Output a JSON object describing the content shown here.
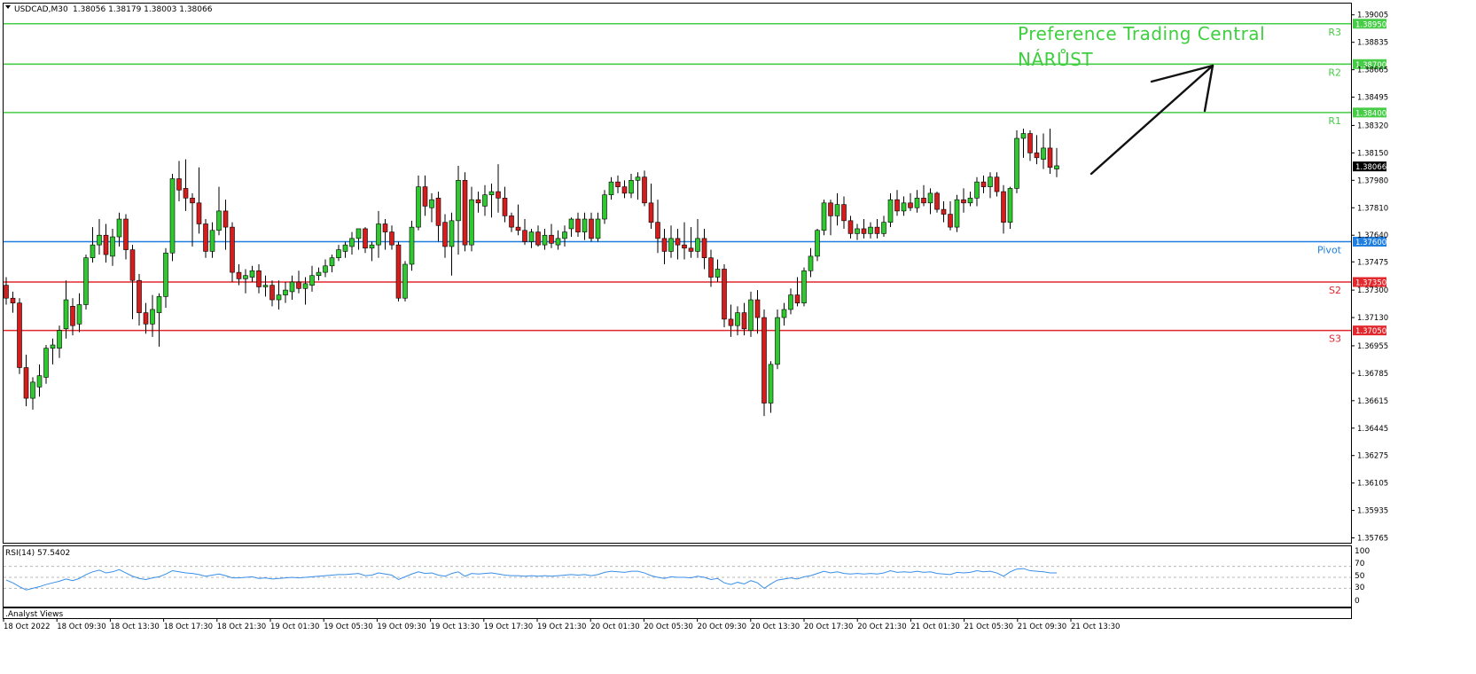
{
  "header": {
    "symbol_label": "USDCAD,M30",
    "ohlc": "1.38056 1.38179 1.38003 1.38066"
  },
  "annotation": {
    "line1": "Preference Trading Central",
    "line2": "NÁRŮST"
  },
  "rsi_panel": {
    "label": "RSI(14) 57.5402",
    "levels": [
      "100",
      "70",
      "50",
      "30",
      "0"
    ]
  },
  "indicator_footer": ".Analyst Views",
  "colors": {
    "bull": "#2ec92e",
    "bear": "#d41d1d",
    "resistance": "#46cc46",
    "support": "#e0282d",
    "pivot": "#1f7fe0",
    "rsi": "#3a8fe8",
    "annotation_text": "#3ecf3e",
    "arrow": "#111111"
  },
  "chart_data": {
    "type": "candlestick",
    "symbol": "USDCAD",
    "timeframe": "M30",
    "y_tick_labels": [
      "1.39005",
      "1.38835",
      "1.38665",
      "1.38495",
      "1.38320",
      "1.38150",
      "1.37980",
      "1.37810",
      "1.37640",
      "1.37475",
      "1.37300",
      "1.37130",
      "1.36955",
      "1.36785",
      "1.36615",
      "1.36445",
      "1.36275",
      "1.36105",
      "1.35935",
      "1.35765"
    ],
    "x_tick_labels": [
      "18 Oct 2022",
      "18 Oct 09:30",
      "18 Oct 13:30",
      "18 Oct 17:30",
      "18 Oct 21:30",
      "19 Oct 01:30",
      "19 Oct 05:30",
      "19 Oct 09:30",
      "19 Oct 13:30",
      "19 Oct 17:30",
      "19 Oct 21:30",
      "20 Oct 01:30",
      "20 Oct 05:30",
      "20 Oct 09:30",
      "20 Oct 13:30",
      "20 Oct 17:30",
      "20 Oct 21:30",
      "21 Oct 01:30",
      "21 Oct 05:30",
      "21 Oct 09:30",
      "21 Oct 13:30"
    ],
    "ylim": [
      1.35735,
      1.39075
    ],
    "current_price": "1.38066",
    "levels": [
      {
        "name": "R3",
        "value": 1.3895,
        "label": "1.38950",
        "kind": "resistance"
      },
      {
        "name": "R2",
        "value": 1.387,
        "label": "1.38700",
        "kind": "resistance"
      },
      {
        "name": "R1",
        "value": 1.384,
        "label": "1.38400",
        "kind": "resistance"
      },
      {
        "name": "Pivot",
        "value": 1.376,
        "label": "1.37600",
        "kind": "pivot"
      },
      {
        "name": "S2",
        "value": 1.3735,
        "label": "1.37350",
        "kind": "support"
      },
      {
        "name": "S3",
        "value": 1.3705,
        "label": "1.37050",
        "kind": "support"
      }
    ],
    "ohlc": [
      [
        1.3733,
        1.3738,
        1.3721,
        1.3725
      ],
      [
        1.3725,
        1.3729,
        1.3716,
        1.3722
      ],
      [
        1.3722,
        1.3725,
        1.3678,
        1.3682
      ],
      [
        1.3682,
        1.369,
        1.3658,
        1.3663
      ],
      [
        1.3663,
        1.3676,
        1.3656,
        1.3673
      ],
      [
        1.367,
        1.3684,
        1.3664,
        1.3677
      ],
      [
        1.3676,
        1.3696,
        1.3672,
        1.3694
      ],
      [
        1.3694,
        1.37,
        1.3684,
        1.3696
      ],
      [
        1.3694,
        1.3708,
        1.3688,
        1.3705
      ],
      [
        1.3706,
        1.3736,
        1.37,
        1.3724
      ],
      [
        1.372,
        1.3725,
        1.3702,
        1.3708
      ],
      [
        1.3709,
        1.3728,
        1.3704,
        1.3721
      ],
      [
        1.3721,
        1.3752,
        1.3718,
        1.375
      ],
      [
        1.375,
        1.3769,
        1.3747,
        1.3758
      ],
      [
        1.3758,
        1.3774,
        1.3752,
        1.3764
      ],
      [
        1.3764,
        1.3771,
        1.3747,
        1.3752
      ],
      [
        1.3751,
        1.3768,
        1.3745,
        1.3763
      ],
      [
        1.3763,
        1.3778,
        1.3757,
        1.3774
      ],
      [
        1.3774,
        1.3777,
        1.3749,
        1.3755
      ],
      [
        1.3755,
        1.3758,
        1.3712,
        1.3736
      ],
      [
        1.3736,
        1.374,
        1.3708,
        1.3716
      ],
      [
        1.3716,
        1.3722,
        1.3703,
        1.3709
      ],
      [
        1.3709,
        1.3727,
        1.3701,
        1.3718
      ],
      [
        1.3716,
        1.3728,
        1.3695,
        1.3726
      ],
      [
        1.3726,
        1.3756,
        1.3719,
        1.3753
      ],
      [
        1.3753,
        1.3802,
        1.3748,
        1.3799
      ],
      [
        1.3799,
        1.381,
        1.3785,
        1.3792
      ],
      [
        1.3793,
        1.3811,
        1.3779,
        1.3787
      ],
      [
        1.3787,
        1.379,
        1.3757,
        1.3784
      ],
      [
        1.3784,
        1.3806,
        1.3765,
        1.3771
      ],
      [
        1.3771,
        1.3774,
        1.375,
        1.3754
      ],
      [
        1.3754,
        1.3772,
        1.375,
        1.3767
      ],
      [
        1.3767,
        1.3794,
        1.3764,
        1.3779
      ],
      [
        1.3779,
        1.3786,
        1.3755,
        1.3769
      ],
      [
        1.3769,
        1.3772,
        1.3735,
        1.3741
      ],
      [
        1.3741,
        1.3746,
        1.3733,
        1.3737
      ],
      [
        1.3737,
        1.3743,
        1.3728,
        1.3739
      ],
      [
        1.3738,
        1.3745,
        1.3735,
        1.3742
      ],
      [
        1.3742,
        1.3746,
        1.3728,
        1.3732
      ],
      [
        1.3732,
        1.3739,
        1.3726,
        1.3733
      ],
      [
        1.3733,
        1.3736,
        1.372,
        1.3724
      ],
      [
        1.3724,
        1.3736,
        1.3718,
        1.3727
      ],
      [
        1.3727,
        1.3735,
        1.3722,
        1.373
      ],
      [
        1.3729,
        1.3739,
        1.3724,
        1.3735
      ],
      [
        1.3735,
        1.3742,
        1.3728,
        1.3731
      ],
      [
        1.3731,
        1.3738,
        1.3721,
        1.3734
      ],
      [
        1.3733,
        1.3745,
        1.3729,
        1.3739
      ],
      [
        1.3739,
        1.3744,
        1.3736,
        1.3741
      ],
      [
        1.3741,
        1.3749,
        1.3738,
        1.3745
      ],
      [
        1.3745,
        1.3752,
        1.3741,
        1.375
      ],
      [
        1.375,
        1.3758,
        1.3748,
        1.3755
      ],
      [
        1.3754,
        1.376,
        1.375,
        1.3758
      ],
      [
        1.3757,
        1.3766,
        1.3752,
        1.3762
      ],
      [
        1.3762,
        1.3768,
        1.3755,
        1.3768
      ],
      [
        1.3768,
        1.3769,
        1.3753,
        1.3756
      ],
      [
        1.3756,
        1.376,
        1.3748,
        1.3758
      ],
      [
        1.3758,
        1.3779,
        1.375,
        1.3771
      ],
      [
        1.3771,
        1.3774,
        1.3755,
        1.3766
      ],
      [
        1.3766,
        1.377,
        1.3755,
        1.3758
      ],
      [
        1.3758,
        1.376,
        1.3723,
        1.3725
      ],
      [
        1.3725,
        1.3748,
        1.3723,
        1.3746
      ],
      [
        1.3746,
        1.3773,
        1.3742,
        1.3769
      ],
      [
        1.3769,
        1.3801,
        1.3767,
        1.3794
      ],
      [
        1.3794,
        1.3801,
        1.3776,
        1.3782
      ],
      [
        1.3781,
        1.379,
        1.3772,
        1.3786
      ],
      [
        1.3787,
        1.3791,
        1.376,
        1.377
      ],
      [
        1.3772,
        1.3777,
        1.375,
        1.3757
      ],
      [
        1.3757,
        1.3778,
        1.3739,
        1.3773
      ],
      [
        1.3773,
        1.3807,
        1.3752,
        1.3798
      ],
      [
        1.3798,
        1.3803,
        1.3754,
        1.3758
      ],
      [
        1.3758,
        1.3794,
        1.3754,
        1.3786
      ],
      [
        1.3786,
        1.3791,
        1.3778,
        1.3784
      ],
      [
        1.3782,
        1.3795,
        1.3776,
        1.3789
      ],
      [
        1.3789,
        1.3796,
        1.3775,
        1.3791
      ],
      [
        1.3791,
        1.3808,
        1.3778,
        1.3787
      ],
      [
        1.3787,
        1.3794,
        1.3772,
        1.3776
      ],
      [
        1.3776,
        1.3778,
        1.3766,
        1.3769
      ],
      [
        1.3769,
        1.3783,
        1.3764,
        1.3767
      ],
      [
        1.3767,
        1.3774,
        1.3758,
        1.376
      ],
      [
        1.376,
        1.3768,
        1.3756,
        1.3766
      ],
      [
        1.3766,
        1.377,
        1.3757,
        1.3758
      ],
      [
        1.3758,
        1.3768,
        1.3755,
        1.3764
      ],
      [
        1.3764,
        1.3771,
        1.3756,
        1.3759
      ],
      [
        1.3758,
        1.3767,
        1.3755,
        1.3762
      ],
      [
        1.3762,
        1.377,
        1.3757,
        1.3766
      ],
      [
        1.3768,
        1.3775,
        1.3763,
        1.3774
      ],
      [
        1.3774,
        1.3778,
        1.3763,
        1.3766
      ],
      [
        1.3766,
        1.3778,
        1.3761,
        1.3774
      ],
      [
        1.3774,
        1.3778,
        1.376,
        1.3762
      ],
      [
        1.3762,
        1.3778,
        1.376,
        1.3774
      ],
      [
        1.3774,
        1.3792,
        1.3771,
        1.3789
      ],
      [
        1.3789,
        1.38,
        1.3786,
        1.3797
      ],
      [
        1.3797,
        1.3801,
        1.379,
        1.3794
      ],
      [
        1.3794,
        1.3798,
        1.3787,
        1.379
      ],
      [
        1.379,
        1.3802,
        1.3787,
        1.3798
      ],
      [
        1.3798,
        1.3803,
        1.3786,
        1.38
      ],
      [
        1.38,
        1.3804,
        1.3782,
        1.3784
      ],
      [
        1.3784,
        1.3796,
        1.3768,
        1.3772
      ],
      [
        1.3772,
        1.3786,
        1.3753,
        1.3762
      ],
      [
        1.3762,
        1.3768,
        1.3746,
        1.3754
      ],
      [
        1.3754,
        1.377,
        1.375,
        1.3762
      ],
      [
        1.3762,
        1.3768,
        1.3749,
        1.3758
      ],
      [
        1.3758,
        1.3772,
        1.3749,
        1.3756
      ],
      [
        1.3756,
        1.3769,
        1.375,
        1.3754
      ],
      [
        1.3754,
        1.3774,
        1.375,
        1.3762
      ],
      [
        1.3762,
        1.3768,
        1.3743,
        1.375
      ],
      [
        1.375,
        1.3755,
        1.3732,
        1.3738
      ],
      [
        1.3738,
        1.3749,
        1.3735,
        1.3743
      ],
      [
        1.3743,
        1.3746,
        1.3707,
        1.3712
      ],
      [
        1.3712,
        1.3721,
        1.3701,
        1.3708
      ],
      [
        1.3708,
        1.372,
        1.3702,
        1.3716
      ],
      [
        1.3716,
        1.3722,
        1.3702,
        1.3706
      ],
      [
        1.3705,
        1.3729,
        1.3701,
        1.3724
      ],
      [
        1.3724,
        1.373,
        1.3703,
        1.3713
      ],
      [
        1.3713,
        1.3718,
        1.3652,
        1.366
      ],
      [
        1.366,
        1.3686,
        1.3654,
        1.3684
      ],
      [
        1.3684,
        1.3718,
        1.3681,
        1.3713
      ],
      [
        1.3713,
        1.3722,
        1.3708,
        1.3718
      ],
      [
        1.3718,
        1.3731,
        1.3715,
        1.3727
      ],
      [
        1.3727,
        1.3738,
        1.372,
        1.3722
      ],
      [
        1.3722,
        1.3744,
        1.372,
        1.3742
      ],
      [
        1.3742,
        1.3756,
        1.3738,
        1.3751
      ],
      [
        1.3751,
        1.3768,
        1.3748,
        1.3767
      ],
      [
        1.3767,
        1.3786,
        1.3764,
        1.3784
      ],
      [
        1.3784,
        1.3786,
        1.3764,
        1.3776
      ],
      [
        1.3776,
        1.379,
        1.377,
        1.3783
      ],
      [
        1.3783,
        1.3788,
        1.3768,
        1.3773
      ],
      [
        1.3773,
        1.3776,
        1.3762,
        1.3765
      ],
      [
        1.3765,
        1.3771,
        1.3761,
        1.3768
      ],
      [
        1.3768,
        1.3774,
        1.3762,
        1.3765
      ],
      [
        1.3765,
        1.3772,
        1.3762,
        1.3769
      ],
      [
        1.3769,
        1.3774,
        1.3762,
        1.3765
      ],
      [
        1.3765,
        1.3776,
        1.3763,
        1.3772
      ],
      [
        1.3772,
        1.379,
        1.3769,
        1.3786
      ],
      [
        1.3786,
        1.3792,
        1.3776,
        1.3779
      ],
      [
        1.3779,
        1.3788,
        1.3776,
        1.3784
      ],
      [
        1.3784,
        1.379,
        1.3779,
        1.3781
      ],
      [
        1.3781,
        1.3792,
        1.3778,
        1.3787
      ],
      [
        1.3787,
        1.3795,
        1.3782,
        1.3784
      ],
      [
        1.3784,
        1.3793,
        1.3777,
        1.379
      ],
      [
        1.379,
        1.3791,
        1.3778,
        1.378
      ],
      [
        1.378,
        1.3785,
        1.3772,
        1.3777
      ],
      [
        1.3777,
        1.3785,
        1.3767,
        1.3769
      ],
      [
        1.3769,
        1.3789,
        1.3766,
        1.3786
      ],
      [
        1.3786,
        1.3793,
        1.3778,
        1.3784
      ],
      [
        1.3784,
        1.3791,
        1.3782,
        1.3787
      ],
      [
        1.3787,
        1.38,
        1.3782,
        1.3797
      ],
      [
        1.3797,
        1.3801,
        1.379,
        1.3794
      ],
      [
        1.3794,
        1.3803,
        1.3787,
        1.38
      ],
      [
        1.38,
        1.3803,
        1.3788,
        1.3791
      ],
      [
        1.3791,
        1.3795,
        1.3765,
        1.3772
      ],
      [
        1.3772,
        1.3794,
        1.3768,
        1.3793
      ],
      [
        1.3793,
        1.3829,
        1.379,
        1.3824
      ],
      [
        1.3824,
        1.383,
        1.3812,
        1.3827
      ],
      [
        1.3827,
        1.3829,
        1.381,
        1.3815
      ],
      [
        1.3815,
        1.3826,
        1.3808,
        1.3812
      ],
      [
        1.3811,
        1.3827,
        1.3805,
        1.3818
      ],
      [
        1.3818,
        1.383,
        1.3802,
        1.3806
      ],
      [
        1.3805,
        1.3818,
        1.38,
        1.3807
      ]
    ],
    "rsi_period": 14,
    "rsi_value": 57.5402,
    "rsi_levels": [
      70,
      50,
      30
    ],
    "rsi": [
      45,
      40,
      33,
      27,
      30,
      33,
      37,
      40,
      43,
      47,
      44,
      48,
      55,
      60,
      63,
      58,
      60,
      64,
      58,
      52,
      48,
      46,
      49,
      51,
      56,
      62,
      60,
      58,
      57,
      55,
      52,
      54,
      56,
      53,
      49,
      49,
      50,
      51,
      48,
      49,
      47,
      48,
      49,
      50,
      49,
      50,
      51,
      52,
      53,
      54,
      55,
      55,
      56,
      57,
      53,
      54,
      58,
      56,
      54,
      46,
      51,
      56,
      60,
      57,
      58,
      54,
      52,
      57,
      60,
      52,
      57,
      56,
      57,
      58,
      56,
      54,
      53,
      53,
      52,
      53,
      52,
      53,
      52,
      53,
      54,
      55,
      54,
      55,
      53,
      55,
      59,
      61,
      60,
      59,
      61,
      61,
      58,
      53,
      50,
      48,
      51,
      50,
      50,
      49,
      52,
      50,
      46,
      48,
      40,
      37,
      41,
      38,
      44,
      40,
      30,
      38,
      45,
      47,
      49,
      47,
      51,
      53,
      57,
      61,
      58,
      60,
      57,
      56,
      57,
      56,
      57,
      56,
      58,
      62,
      59,
      60,
      59,
      61,
      59,
      60,
      57,
      56,
      55,
      59,
      58,
      59,
      62,
      60,
      61,
      58,
      52,
      60,
      65,
      66,
      62,
      61,
      60,
      58,
      58
    ]
  }
}
